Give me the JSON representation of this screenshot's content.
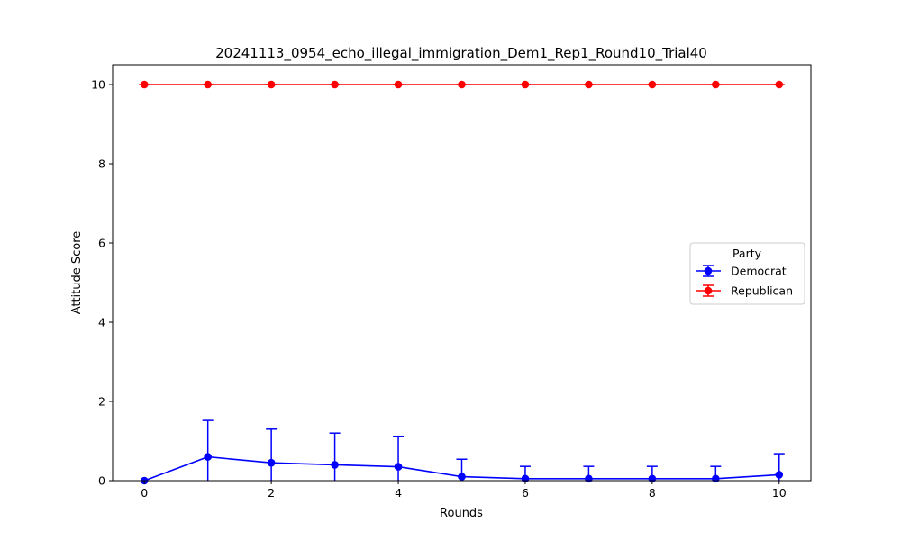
{
  "chart_data": {
    "type": "line",
    "title": "20241113_0954_echo_illegal_immigration_Dem1_Rep1_Round10_Trial40",
    "xlabel": "Rounds",
    "ylabel": "Attitude Score",
    "x": [
      0,
      1,
      2,
      3,
      4,
      5,
      6,
      7,
      8,
      9,
      10
    ],
    "xlim": [
      -0.5,
      10.5
    ],
    "ylim": [
      0,
      10.5
    ],
    "xticks": [
      0,
      2,
      4,
      6,
      8,
      10
    ],
    "yticks": [
      0,
      2,
      4,
      6,
      8,
      10
    ],
    "grid": false,
    "legend": {
      "title": "Party",
      "position": "center-right"
    },
    "series": [
      {
        "name": "Democrat",
        "color": "#0000ff",
        "values": [
          0.0,
          0.6,
          0.45,
          0.4,
          0.35,
          0.1,
          0.05,
          0.05,
          0.05,
          0.05,
          0.15
        ],
        "error": [
          0.0,
          0.92,
          0.85,
          0.8,
          0.77,
          0.44,
          0.31,
          0.31,
          0.31,
          0.31,
          0.53
        ]
      },
      {
        "name": "Republican",
        "color": "#ff0000",
        "values": [
          10,
          10,
          10,
          10,
          10,
          10,
          10,
          10,
          10,
          10,
          10
        ],
        "error": [
          0,
          0,
          0,
          0,
          0,
          0,
          0,
          0,
          0,
          0,
          0
        ]
      }
    ]
  }
}
